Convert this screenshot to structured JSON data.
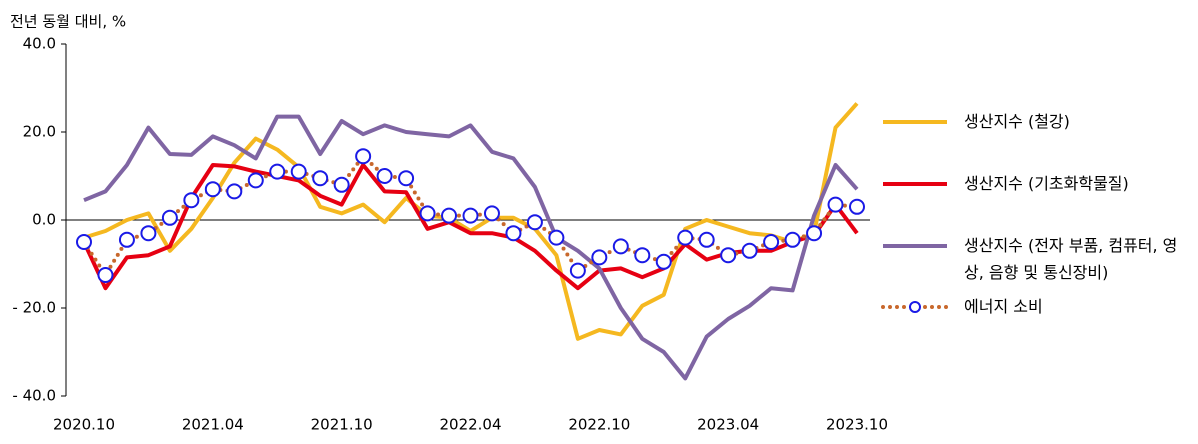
{
  "chart_data": {
    "type": "line",
    "title": "전년 동월 대비, %",
    "categories": [
      "2020.10",
      null,
      null,
      null,
      null,
      null,
      "2021.04",
      null,
      null,
      null,
      null,
      null,
      "2021.10",
      null,
      null,
      null,
      null,
      null,
      "2022.04",
      null,
      null,
      null,
      null,
      null,
      "2022.10",
      null,
      null,
      null,
      null,
      null,
      "2023.04",
      null,
      null,
      null,
      null,
      null,
      "2023.10"
    ],
    "ylim": [
      -40,
      40
    ],
    "yticks": [
      {
        "value": 40,
        "label": "40.0"
      },
      {
        "value": 20,
        "label": "20.0"
      },
      {
        "value": 0,
        "label": "0.0"
      },
      {
        "value": -20,
        "label": "- 20.0"
      },
      {
        "value": -40,
        "label": "- 40.0"
      }
    ],
    "legend": "right",
    "series": [
      {
        "name": "생산지수 (철강)",
        "color": "#f5b820",
        "values": [
          -4,
          -2.5,
          0,
          1.5,
          -7,
          -2,
          5,
          13,
          18.5,
          16,
          12,
          3,
          1.5,
          3.5,
          -0.5,
          5,
          1,
          0.5,
          -2.5,
          0.5,
          0.5,
          -2,
          -8,
          -27,
          -25,
          -26,
          -19.5,
          -17,
          -2,
          0,
          -1.5,
          -3,
          -3.5,
          -5,
          -3,
          21,
          26.5
        ]
      },
      {
        "name": "생산지수 (기초화학물질)",
        "color": "#e60012",
        "values": [
          -5,
          -15.5,
          -8.5,
          -8,
          -6,
          5,
          12.5,
          12.2,
          11,
          10,
          9,
          5.5,
          3.5,
          12.5,
          6.5,
          6.3,
          -2,
          -0.5,
          -3,
          -3,
          -4,
          -7,
          -11.5,
          -15.5,
          -11.5,
          -11,
          -13,
          -11,
          -5.5,
          -9,
          -7.5,
          -7,
          -7,
          -5,
          -3.5,
          3.5,
          -3
        ]
      },
      {
        "name": "생산지수 (전자 부품, 컴퓨터, 영상, 음향 및 통신장비)",
        "color": "#7f65a3",
        "values": [
          4.5,
          6.5,
          12.5,
          21,
          15,
          14.8,
          19,
          17,
          14,
          23.5,
          23.5,
          15,
          22.5,
          19.5,
          21.5,
          20,
          19.5,
          19,
          21.5,
          15.5,
          14,
          7.5,
          -4,
          -7,
          -11,
          -20,
          -27,
          -30,
          -36,
          -26.5,
          -22.5,
          -19.5,
          -15.5,
          -16,
          1,
          12.5,
          7
        ]
      },
      {
        "name": "에너지 소비",
        "color": "#c8682c",
        "marker_color": "#1a1ae6",
        "dash": "dotted",
        "marker": "circle",
        "values": [
          -5,
          -12.5,
          -4.5,
          -3,
          0.5,
          4.5,
          7,
          6.5,
          9,
          11,
          11,
          9.5,
          8,
          14.5,
          10,
          9.5,
          1.5,
          1,
          1,
          1.5,
          -3,
          -0.5,
          -4,
          -11.5,
          -8.5,
          -6,
          -8,
          -9.5,
          -4,
          -4.5,
          -8,
          -7,
          -5,
          -4.5,
          -3,
          3.5,
          3
        ]
      }
    ]
  }
}
